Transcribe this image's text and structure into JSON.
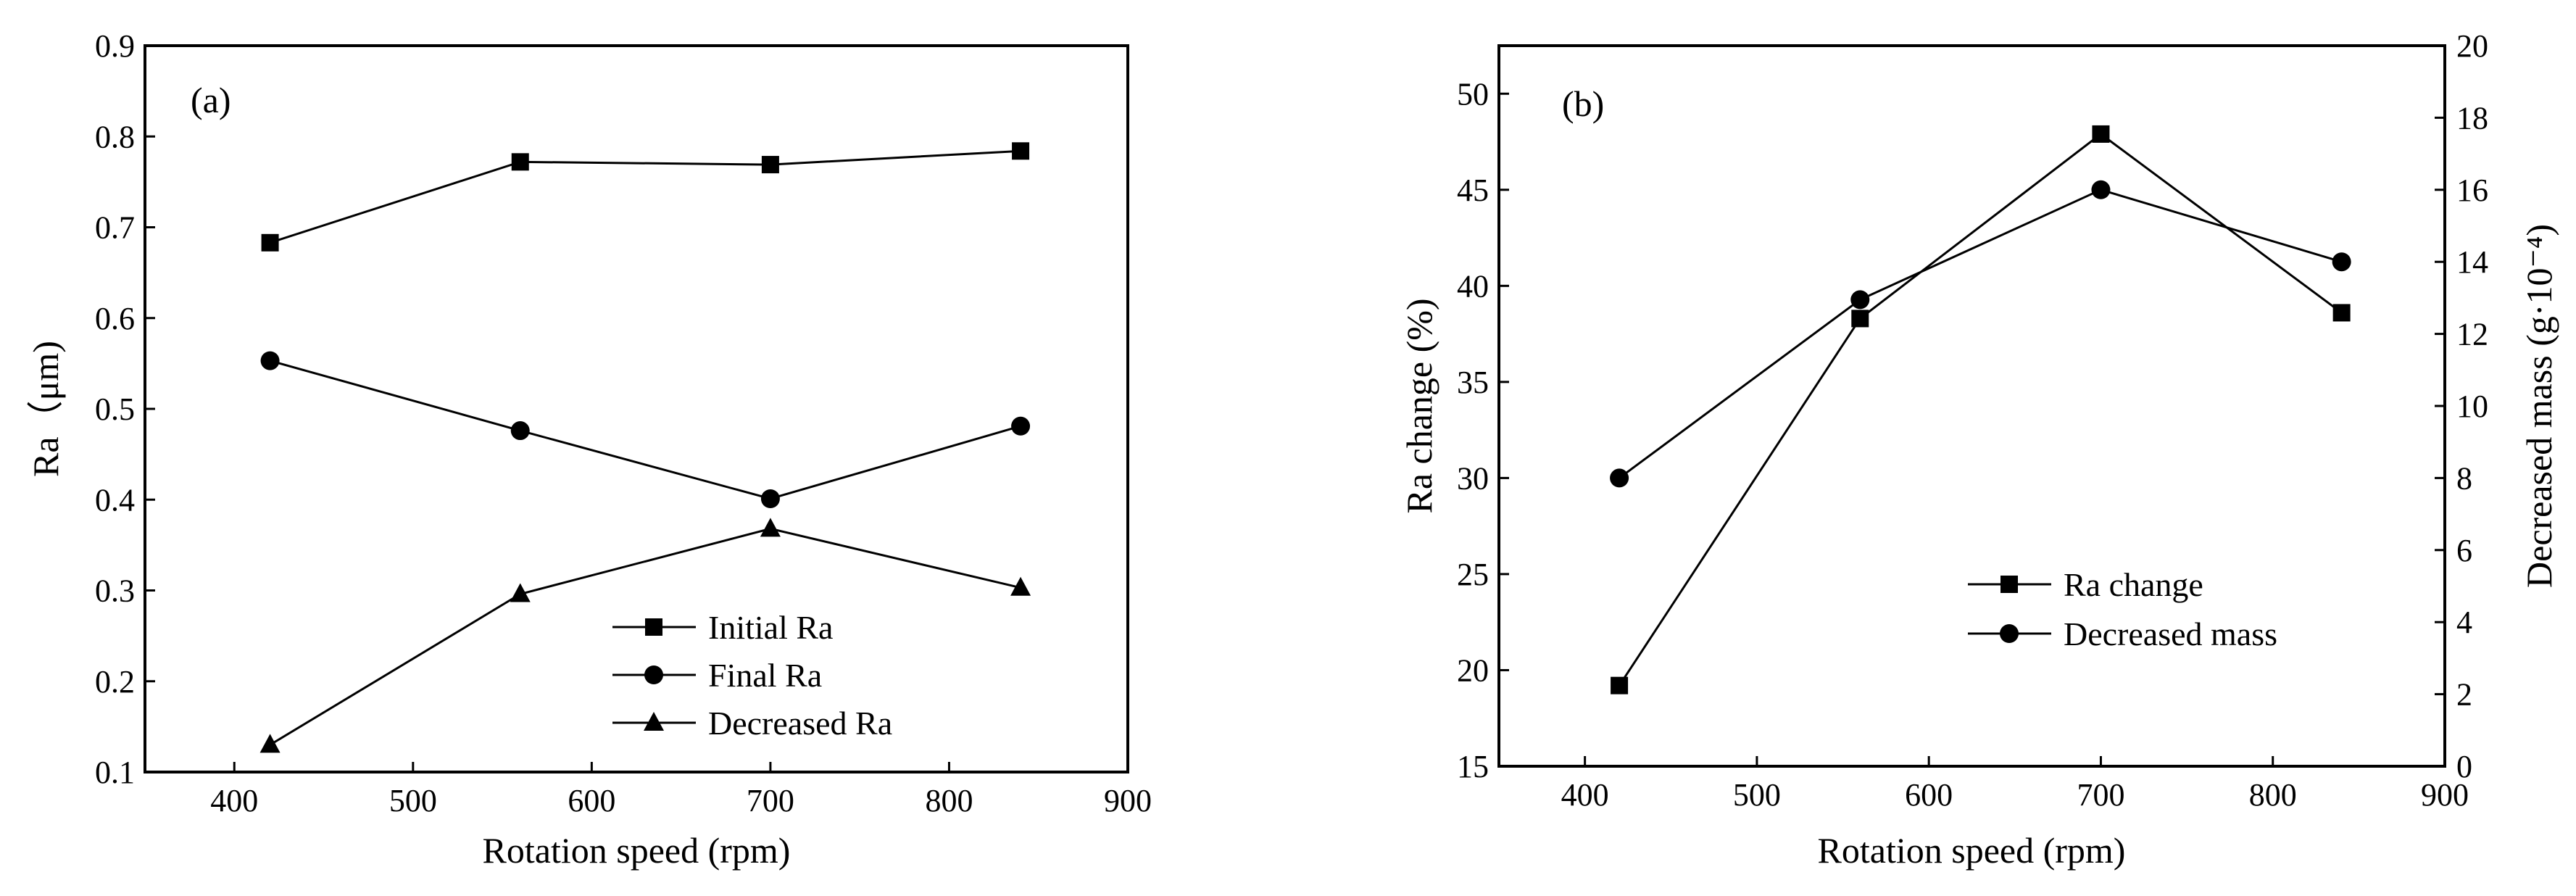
{
  "chart_data": [
    {
      "panel_label": "(a)",
      "type": "line",
      "xlabel": "Rotation speed (rpm)",
      "ylabel": "Ra（μm)",
      "xlim": [
        350,
        900
      ],
      "ylim": [
        0.1,
        0.9
      ],
      "xticks": [
        "400",
        "500",
        "600",
        "700",
        "800",
        "900"
      ],
      "yticks": [
        "0.1",
        "0.2",
        "0.3",
        "0.4",
        "0.5",
        "0.6",
        "0.7",
        "0.8",
        "0.9"
      ],
      "grid": false,
      "legend_position": "bottom-right",
      "x": [
        420,
        560,
        700,
        840
      ],
      "series": [
        {
          "name": "Initial  Ra",
          "marker": "square",
          "values": [
            0.683,
            0.772,
            0.769,
            0.784
          ]
        },
        {
          "name": "Final  Ra",
          "marker": "circle",
          "values": [
            0.553,
            0.476,
            0.401,
            0.481
          ]
        },
        {
          "name": "Decreased  Ra",
          "marker": "triangle",
          "values": [
            0.13,
            0.296,
            0.368,
            0.303
          ]
        }
      ]
    },
    {
      "panel_label": "(b)",
      "type": "line",
      "xlabel": "Rotation speed (rpm)",
      "ylabel": "Ra change (%)",
      "y2label": "Decreased mass (g·10⁻⁴)",
      "xlim": [
        350,
        900
      ],
      "ylim": [
        15,
        52.5
      ],
      "y2lim": [
        0,
        20
      ],
      "xticks": [
        "400",
        "500",
        "600",
        "700",
        "800",
        "900"
      ],
      "yticks": [
        "15",
        "20",
        "25",
        "30",
        "35",
        "40",
        "45",
        "50"
      ],
      "y2ticks": [
        "0",
        "2",
        "4",
        "6",
        "8",
        "10",
        "12",
        "14",
        "16",
        "18",
        "20"
      ],
      "grid": false,
      "legend_position": "bottom-right",
      "x": [
        420,
        560,
        700,
        840
      ],
      "series": [
        {
          "name": "Ra change",
          "marker": "square",
          "axis": "left",
          "values": [
            19.2,
            38.3,
            47.9,
            38.6
          ]
        },
        {
          "name": "Decreased mass",
          "marker": "circle",
          "axis": "right",
          "values": [
            8.0,
            12.95,
            16.0,
            14.0
          ]
        }
      ]
    }
  ]
}
